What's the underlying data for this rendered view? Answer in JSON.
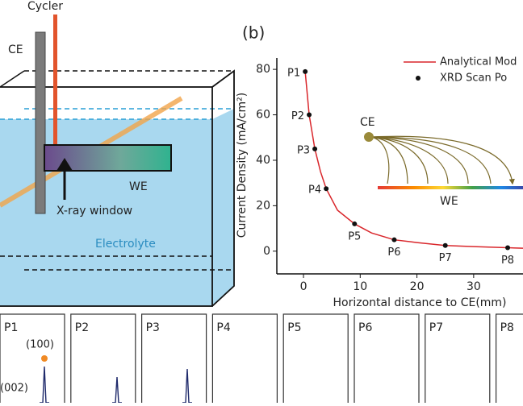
{
  "schematic": {
    "cycler": "Cycler",
    "ce": "CE",
    "we": "WE",
    "xray": "X-ray window",
    "electrolyte": "Electrolyte"
  },
  "chart_data": {
    "type": "scatter",
    "panel": "(b)",
    "x_label": "Horizontal distance to CE(mm)",
    "y_label": "Current Density (mA/cm²)",
    "xlim": [
      -4.7,
      38.7
    ],
    "ylim": [
      -10,
      85
    ],
    "xticks": [
      0,
      10,
      20,
      30
    ],
    "yticks": [
      0,
      20,
      40,
      60,
      80
    ],
    "series": [
      {
        "name": "Analytical Mod",
        "type": "line",
        "color": "#d9262b",
        "x": [
          0.3,
          1,
          2,
          3,
          4,
          6,
          9,
          12,
          16,
          20,
          25,
          30,
          36,
          38.7
        ],
        "values": [
          79,
          60,
          45,
          35,
          27.5,
          18,
          12,
          8,
          5,
          3.8,
          2.5,
          2,
          1.5,
          1.3
        ]
      },
      {
        "name": "XRD Scan Po",
        "type": "scatter",
        "color": "#111111",
        "x": [
          0.3,
          1,
          2,
          4,
          9,
          16,
          25,
          36
        ],
        "values": [
          79,
          60,
          45,
          27.5,
          12,
          5,
          2.5,
          1.5
        ],
        "point_labels": [
          "P1",
          "P2",
          "P3",
          "P4",
          "P5",
          "P6",
          "P7",
          "P8"
        ]
      }
    ],
    "inset": {
      "ce": "CE",
      "we": "WE"
    }
  },
  "xrd_panels": {
    "labels": [
      "P1",
      "P2",
      "P3",
      "P4",
      "P5",
      "P6",
      "P7",
      "P8"
    ],
    "peak_100": "(100)",
    "peak_002": "(002)"
  }
}
